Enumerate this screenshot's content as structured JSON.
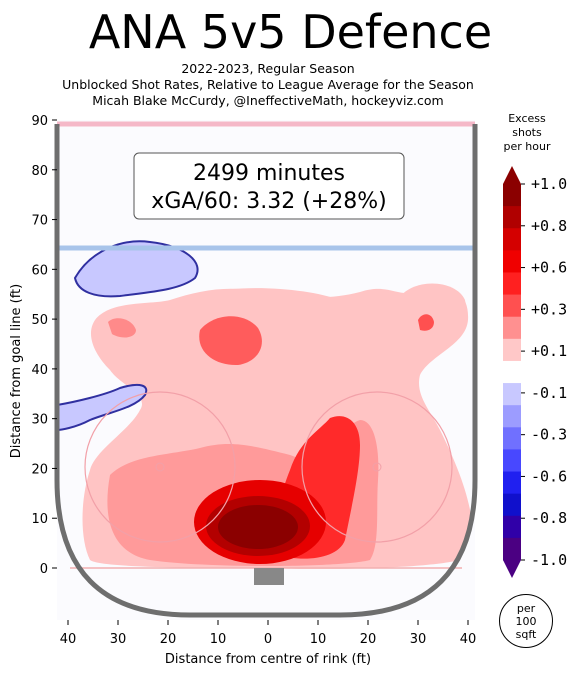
{
  "header": {
    "title": "ANA 5v5 Defence",
    "subtitle_line1": "2022-2023, Regular Season",
    "subtitle_line2": "Unblocked Shot Rates, Relative to League Average for the Season",
    "subtitle_line3": "Micah Blake McCurdy, @IneffectiveMath, hockeyviz.com"
  },
  "annotation": {
    "minutes": "2499 minutes",
    "xga": "xGA/60: 3.32 (+28%)"
  },
  "colorbar": {
    "title_line1": "Excess",
    "title_line2": "shots",
    "title_line3": "per hour",
    "ticks": [
      {
        "label": "+1.0",
        "value": 1.0
      },
      {
        "label": "+0.8",
        "value": 0.8
      },
      {
        "label": "+0.6",
        "value": 0.6
      },
      {
        "label": "+0.3",
        "value": 0.3
      },
      {
        "label": "+0.1",
        "value": 0.1
      },
      {
        "label": "-0.1",
        "value": -0.1
      },
      {
        "label": "-0.3",
        "value": -0.3
      },
      {
        "label": "-0.6",
        "value": -0.6
      },
      {
        "label": "-0.8",
        "value": -0.8
      },
      {
        "label": "-1.0",
        "value": -1.0
      }
    ],
    "unit_line1": "per",
    "unit_line2": "100",
    "unit_line3": "sqft"
  },
  "colors": {
    "pos_strong": "#8b0000",
    "pos_mid": "#ff0000",
    "pos_light": "#ff8a8a",
    "pos_faint": "#ffc4c4",
    "neutral": "#ffffff",
    "neg_faint": "#c8c8ff",
    "neg_mid": "#4040ff",
    "neg_strong": "#4b0082"
  },
  "chart_data": {
    "type": "heatmap",
    "xlabel": "Distance from centre of rink (ft)",
    "ylabel": "Distance from goal line (ft)",
    "xlim": [
      -42.5,
      42.5
    ],
    "ylim": [
      -11,
      89
    ],
    "x_ticks": [
      {
        "label": "40",
        "value": -40
      },
      {
        "label": "30",
        "value": -30
      },
      {
        "label": "20",
        "value": -20
      },
      {
        "label": "10",
        "value": -10
      },
      {
        "label": "0",
        "value": 0
      },
      {
        "label": "10",
        "value": 10
      },
      {
        "label": "20",
        "value": 20
      },
      {
        "label": "30",
        "value": 30
      },
      {
        "label": "40",
        "value": 40
      }
    ],
    "y_ticks": [
      0,
      10,
      20,
      30,
      40,
      50,
      60,
      70,
      80,
      90
    ],
    "regions": [
      {
        "name": "slot-hotspot",
        "x": 0,
        "y": 8,
        "value": 1.0
      },
      {
        "name": "right-circle-lobe",
        "x": 14,
        "y": 20,
        "value": 0.6
      },
      {
        "name": "high-slot-left",
        "x": -5,
        "y": 45,
        "value": 0.3
      },
      {
        "name": "right-point",
        "x": 31,
        "y": 50,
        "value": 0.3
      },
      {
        "name": "left-point",
        "x": -29,
        "y": 48,
        "value": 0.3
      },
      {
        "name": "left-corner-blue",
        "x": -30,
        "y": 62,
        "value": -0.1
      },
      {
        "name": "left-boards-blue",
        "x": -32,
        "y": 30,
        "value": -0.1
      }
    ]
  }
}
